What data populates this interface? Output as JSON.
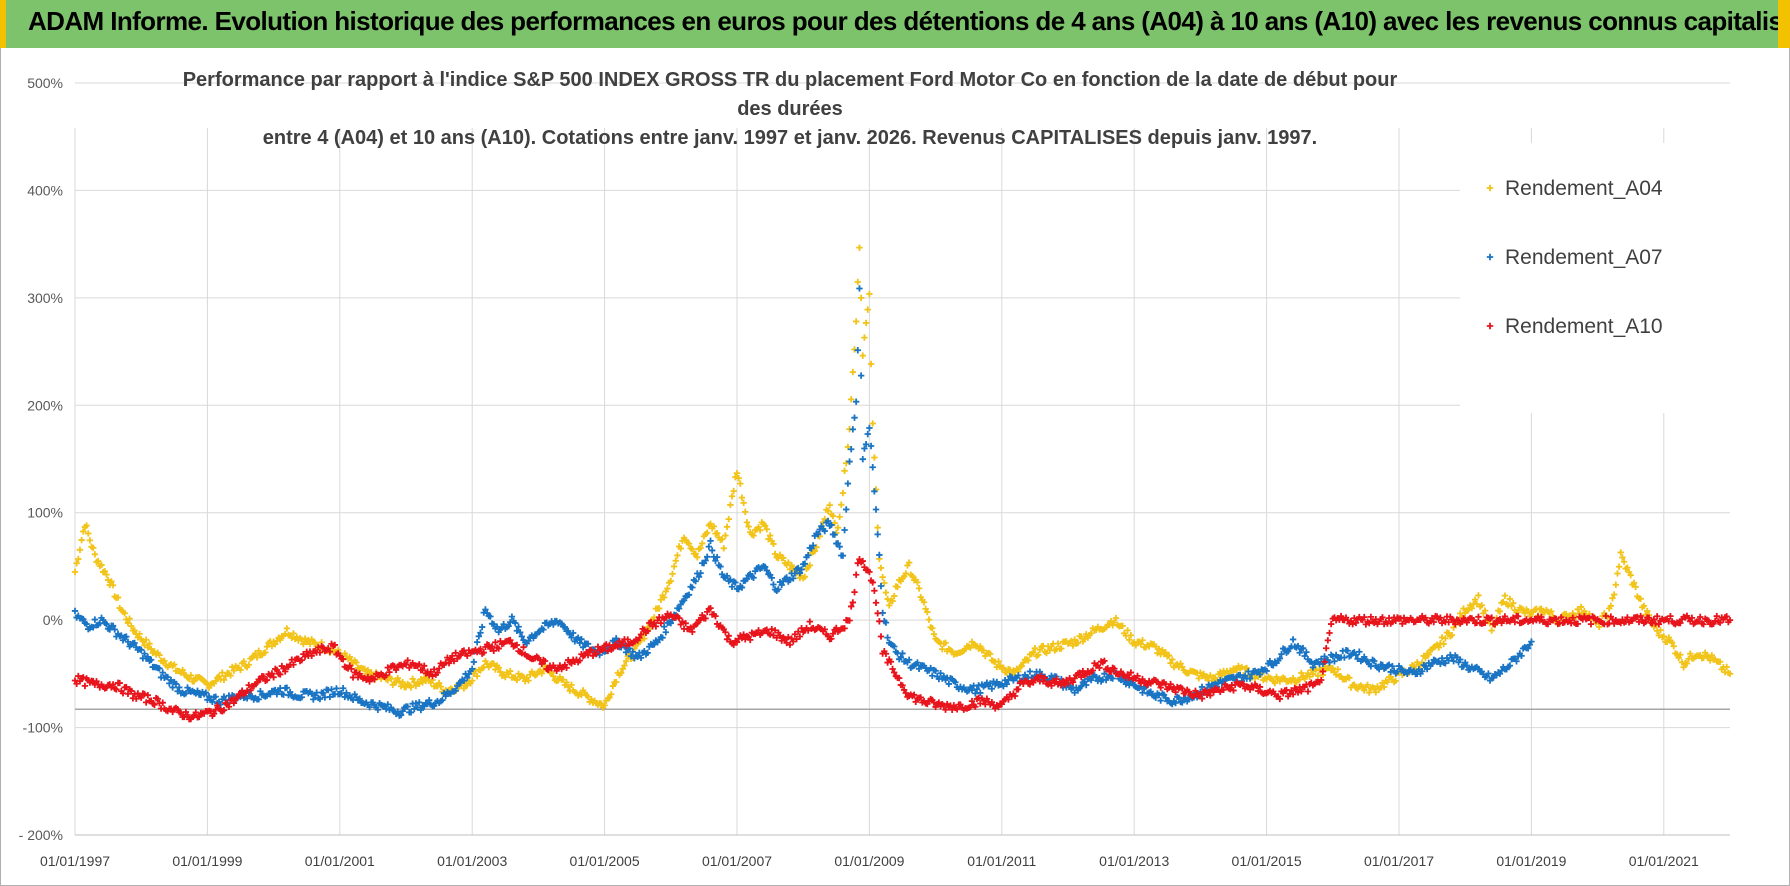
{
  "banner": {
    "title": "ADAM Informe. Evolution historique des performances en euros pour des détentions de 4 ans (A04) à 10 ans (A10) avec les revenus connus capitalisés"
  },
  "chart_data": {
    "type": "scatter",
    "title_line1": "Performance par rapport à l'indice S&P 500 INDEX GROSS TR  du placement Ford Motor Co en fonction de la date de début pour des durées",
    "title_line2": "entre 4 (A04) et 10 ans (A10).  Cotations entre janv. 1997 et janv. 2026. Revenus CAPITALISES depuis janv. 1997.",
    "xlabel": "",
    "ylabel": "",
    "x_range": [
      1997.0,
      2022.0
    ],
    "ylim": [
      -200,
      500
    ],
    "y_ticks": [
      -200,
      -100,
      0,
      100,
      200,
      300,
      400,
      500
    ],
    "y_tick_labels": [
      "- 200%",
      "-100%",
      "0%",
      "100%",
      "200%",
      "300%",
      "400%",
      "500%"
    ],
    "x_ticks": [
      1997,
      1999,
      2001,
      2003,
      2005,
      2007,
      2009,
      2011,
      2013,
      2015,
      2017,
      2019,
      2021
    ],
    "x_tick_labels": [
      "01/01/1997",
      "01/01/1999",
      "01/01/2001",
      "01/01/2003",
      "01/01/2005",
      "01/01/2007",
      "01/01/2009",
      "01/01/2011",
      "01/01/2013",
      "01/01/2015",
      "01/01/2017",
      "01/01/2019",
      "01/01/2021"
    ],
    "reference_line_y": -83,
    "grid": true,
    "legend_position": "top-right",
    "series": [
      {
        "name": "Rendement_A04",
        "color": "#f2c318",
        "x": [
          1997.0,
          1997.15,
          1997.3,
          1997.5,
          1997.7,
          1997.9,
          1998.2,
          1998.5,
          1998.8,
          1999.0,
          1999.3,
          1999.6,
          1999.9,
          2000.2,
          2000.5,
          2000.8,
          2001.1,
          2001.4,
          2001.7,
          2002.0,
          2002.3,
          2002.6,
          2002.9,
          2003.2,
          2003.5,
          2003.8,
          2004.1,
          2004.4,
          2004.7,
          2005.0,
          2005.2,
          2005.5,
          2005.8,
          2006.0,
          2006.2,
          2006.4,
          2006.6,
          2006.8,
          2007.0,
          2007.2,
          2007.4,
          2007.6,
          2007.8,
          2008.0,
          2008.2,
          2008.4,
          2008.5,
          2008.6,
          2008.7,
          2008.8,
          2008.85,
          2008.9,
          2009.0,
          2009.05,
          2009.1,
          2009.15,
          2009.2,
          2009.3,
          2009.4,
          2009.6,
          2009.8,
          2010.0,
          2010.3,
          2010.6,
          2010.9,
          2011.2,
          2011.5,
          2011.8,
          2012.1,
          2012.4,
          2012.7,
          2013.0,
          2013.3,
          2013.6,
          2013.9,
          2014.2,
          2014.5,
          2014.8,
          2015.1,
          2015.4,
          2015.7,
          2016.0,
          2016.3,
          2016.6,
          2016.9,
          2017.2,
          2017.5,
          2017.8,
          2018.0,
          2018.2,
          2018.4,
          2018.6,
          2018.8,
          2019.0,
          2019.2,
          2019.4,
          2019.6,
          2019.8,
          2020.0,
          2020.2,
          2020.35,
          2020.5,
          2020.7,
          2020.9,
          2021.1,
          2021.3,
          2021.5,
          2021.7,
          2021.9,
          2022.0
        ],
        "values": [
          45,
          90,
          60,
          40,
          10,
          -10,
          -30,
          -45,
          -55,
          -60,
          -50,
          -40,
          -25,
          -10,
          -20,
          -25,
          -35,
          -50,
          -55,
          -60,
          -55,
          -65,
          -60,
          -40,
          -50,
          -55,
          -45,
          -60,
          -70,
          -80,
          -50,
          -25,
          10,
          40,
          80,
          60,
          90,
          70,
          140,
          80,
          90,
          60,
          50,
          40,
          70,
          110,
          80,
          120,
          180,
          280,
          350,
          250,
          300,
          180,
          120,
          60,
          40,
          10,
          30,
          50,
          20,
          -20,
          -30,
          -20,
          -40,
          -50,
          -30,
          -25,
          -20,
          -10,
          0,
          -20,
          -25,
          -40,
          -50,
          -55,
          -45,
          -50,
          -55,
          -55,
          -50,
          -45,
          -60,
          -65,
          -55,
          -45,
          -30,
          -10,
          10,
          20,
          -10,
          20,
          10,
          5,
          10,
          0,
          5,
          10,
          -5,
          10,
          60,
          40,
          10,
          -10,
          -20,
          -40,
          -30,
          -35,
          -45,
          -50
        ]
      },
      {
        "name": "Rendement_A07",
        "color": "#1a74c4",
        "x": [
          1997.0,
          1997.2,
          1997.4,
          1997.6,
          1997.8,
          1998.0,
          1998.3,
          1998.6,
          1998.9,
          1999.2,
          1999.5,
          1999.8,
          2000.1,
          2000.4,
          2000.7,
          2001.0,
          2001.3,
          2001.6,
          2001.9,
          2002.2,
          2002.5,
          2002.8,
          2003.0,
          2003.2,
          2003.4,
          2003.6,
          2003.8,
          2004.0,
          2004.3,
          2004.6,
          2004.9,
          2005.2,
          2005.5,
          2005.8,
          2006.0,
          2006.2,
          2006.4,
          2006.6,
          2006.8,
          2007.0,
          2007.2,
          2007.4,
          2007.6,
          2007.8,
          2008.0,
          2008.2,
          2008.4,
          2008.6,
          2008.7,
          2008.8,
          2008.85,
          2008.9,
          2009.0,
          2009.05,
          2009.1,
          2009.15,
          2009.2,
          2009.3,
          2009.4,
          2009.6,
          2009.8,
          2010.0,
          2010.3,
          2010.6,
          2010.9,
          2011.2,
          2011.5,
          2011.8,
          2012.1,
          2012.4,
          2012.7,
          2013.0,
          2013.3,
          2013.6,
          2013.9,
          2014.2,
          2014.5,
          2014.8,
          2015.1,
          2015.4,
          2015.7,
          2016.0,
          2016.3,
          2016.6,
          2016.9,
          2017.2,
          2017.5,
          2017.8,
          2018.1,
          2018.4,
          2018.7,
          2019.0
        ],
        "values": [
          5,
          -5,
          0,
          -10,
          -20,
          -30,
          -50,
          -65,
          -70,
          -75,
          -70,
          -70,
          -65,
          -70,
          -70,
          -65,
          -75,
          -80,
          -85,
          -80,
          -75,
          -60,
          -45,
          10,
          -10,
          0,
          -20,
          -10,
          0,
          -20,
          -30,
          -20,
          -35,
          -20,
          0,
          20,
          40,
          70,
          40,
          30,
          40,
          50,
          30,
          40,
          50,
          80,
          90,
          60,
          150,
          200,
          310,
          150,
          180,
          140,
          100,
          60,
          10,
          -20,
          -30,
          -40,
          -45,
          -50,
          -60,
          -65,
          -60,
          -55,
          -50,
          -55,
          -65,
          -55,
          -50,
          -60,
          -70,
          -75,
          -70,
          -60,
          -55,
          -50,
          -40,
          -20,
          -40,
          -35,
          -30,
          -40,
          -45,
          -50,
          -40,
          -35,
          -45,
          -55,
          -40,
          -20
        ]
      },
      {
        "name": "Rendement_A10",
        "color": "#e8141c",
        "x": [
          1997.0,
          1997.3,
          1997.6,
          1997.9,
          1998.2,
          1998.5,
          1998.8,
          1999.1,
          1999.4,
          1999.7,
          2000.0,
          2000.3,
          2000.6,
          2000.9,
          2001.2,
          2001.5,
          2001.8,
          2002.1,
          2002.4,
          2002.7,
          2003.0,
          2003.3,
          2003.6,
          2003.9,
          2004.2,
          2004.5,
          2004.8,
          2005.1,
          2005.4,
          2005.7,
          2006.0,
          2006.3,
          2006.6,
          2006.9,
          2007.2,
          2007.5,
          2007.8,
          2008.1,
          2008.4,
          2008.7,
          2008.85,
          2009.0,
          2009.1,
          2009.2,
          2009.4,
          2009.6,
          2009.8,
          2010.1,
          2010.4,
          2010.7,
          2011.0,
          2011.3,
          2011.6,
          2011.9,
          2012.2,
          2012.5,
          2012.8,
          2013.1,
          2013.4,
          2013.7,
          2014.0,
          2014.3,
          2014.6,
          2014.9,
          2015.2,
          2015.5,
          2015.8,
          2016.0,
          2016.3,
          2016.6,
          2016.9,
          2017.5,
          2018.0,
          2018.5,
          2019.0,
          2019.5,
          2020.0,
          2020.5,
          2021.0,
          2021.5,
          2022.0
        ],
        "values": [
          -55,
          -60,
          -60,
          -70,
          -75,
          -85,
          -90,
          -85,
          -75,
          -60,
          -50,
          -40,
          -30,
          -25,
          -50,
          -55,
          -45,
          -40,
          -50,
          -35,
          -30,
          -25,
          -20,
          -35,
          -45,
          -40,
          -30,
          -25,
          -20,
          -5,
          5,
          -10,
          10,
          -20,
          -15,
          -10,
          -20,
          -5,
          -15,
          0,
          60,
          45,
          20,
          -30,
          -50,
          -70,
          -75,
          -80,
          -80,
          -75,
          -80,
          -60,
          -55,
          -60,
          -50,
          -40,
          -50,
          -55,
          -60,
          -65,
          -70,
          -65,
          -60,
          -65,
          -70,
          -65,
          -60,
          0,
          0,
          0,
          0,
          0,
          0,
          0,
          0,
          0,
          0,
          0,
          0,
          0,
          0
        ]
      }
    ]
  }
}
